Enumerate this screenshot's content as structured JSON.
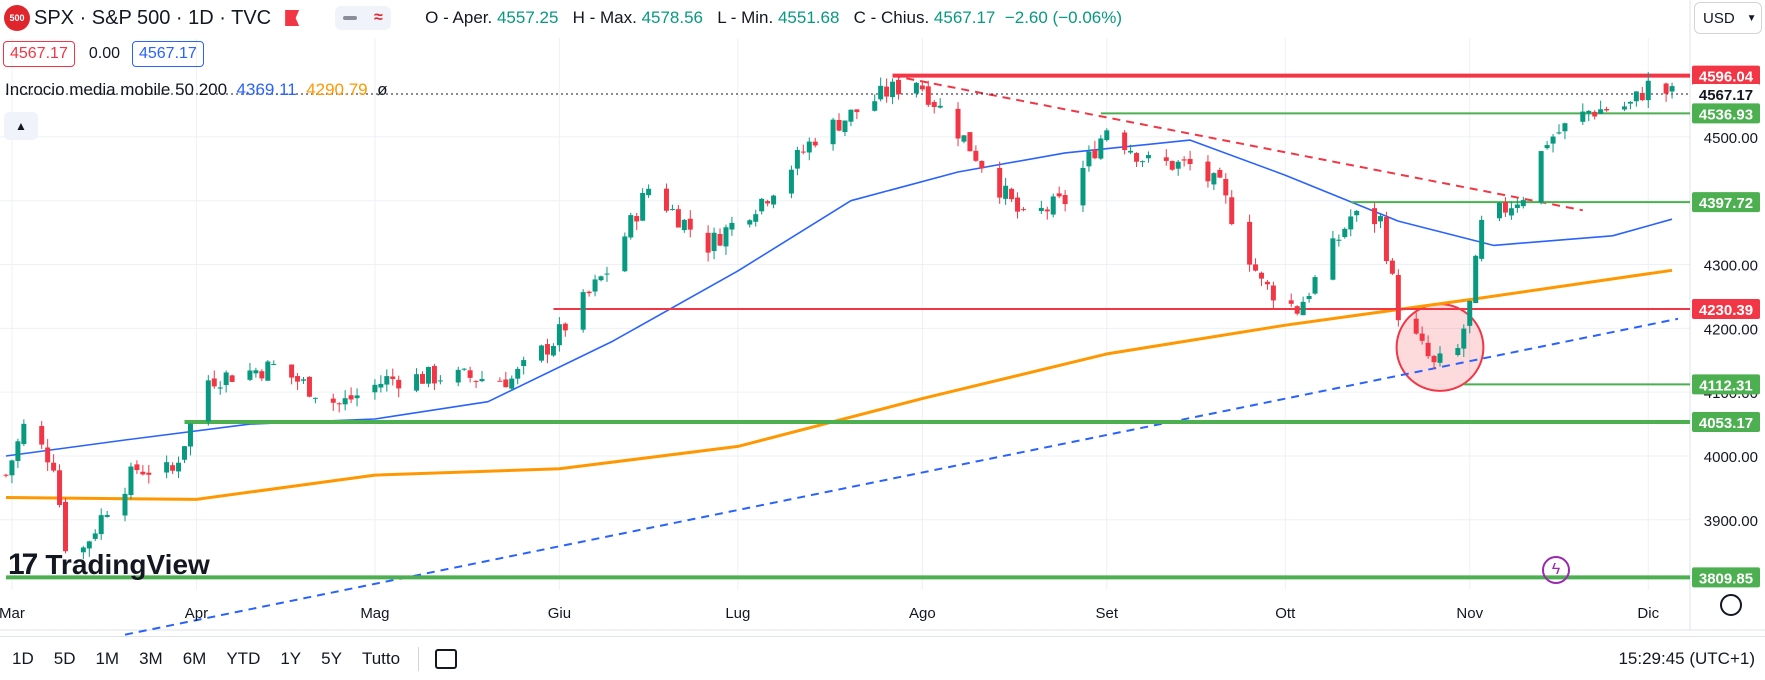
{
  "header": {
    "logo_text": "500",
    "symbol": "SPX · S&P 500 · 1D · TVC",
    "ohlc": {
      "o_label": "O - Aper.",
      "o": "4557.25",
      "h_label": "H - Max.",
      "h": "4578.56",
      "l_label": "L - Min.",
      "l": "4551.68",
      "c_label": "C - Chius.",
      "c": "4567.17",
      "change": "−2.60 (−0.06%)"
    },
    "currency": "USD"
  },
  "quote": {
    "bid": "4567.17",
    "spread": "0.00",
    "ask": "4567.17"
  },
  "indicator": {
    "name": "Incrocio media mobile 50 200",
    "ma50": "4369.11",
    "ma200": "4290.79",
    "extra": "ø"
  },
  "brand": "TradingView",
  "bottombar": {
    "ranges": [
      "1D",
      "5D",
      "1M",
      "3M",
      "6M",
      "YTD",
      "1Y",
      "5Y",
      "Tutto"
    ],
    "clock": "15:29:45 (UTC+1)"
  },
  "colors": {
    "up": "#089981",
    "down": "#f23645",
    "ma50": "#2962ff",
    "ma200": "#ff9800",
    "support": "#4caf50"
  },
  "chart_data": {
    "type": "candlestick",
    "x_range": [
      "2023-02-28",
      "2023-12-06"
    ],
    "ylim": [
      3790,
      4655
    ],
    "y_ticks": [
      3900,
      4000,
      4100,
      4200,
      4300,
      4400,
      4500
    ],
    "x_ticks": [
      {
        "date": "2023-03-01",
        "label": "Mar"
      },
      {
        "date": "2023-04-01",
        "label": "Apr"
      },
      {
        "date": "2023-05-01",
        "label": "Mag"
      },
      {
        "date": "2023-06-01",
        "label": "Giu"
      },
      {
        "date": "2023-07-01",
        "label": "Lug"
      },
      {
        "date": "2023-08-01",
        "label": "Ago"
      },
      {
        "date": "2023-09-01",
        "label": "Set"
      },
      {
        "date": "2023-10-01",
        "label": "Ott"
      },
      {
        "date": "2023-11-01",
        "label": "Nov"
      },
      {
        "date": "2023-12-01",
        "label": "Dic"
      }
    ],
    "price_path": [
      [
        "2023-02-28",
        3970
      ],
      [
        "2023-03-03",
        4045
      ],
      [
        "2023-03-08",
        3990
      ],
      [
        "2023-03-10",
        3862
      ],
      [
        "2023-03-13",
        3855
      ],
      [
        "2023-03-17",
        3920
      ],
      [
        "2023-03-22",
        3980
      ],
      [
        "2023-03-28",
        3975
      ],
      [
        "2023-04-03",
        4120
      ],
      [
        "2023-04-14",
        4140
      ],
      [
        "2023-04-25",
        4080
      ],
      [
        "2023-05-03",
        4120
      ],
      [
        "2023-05-12",
        4125
      ],
      [
        "2023-05-24",
        4120
      ],
      [
        "2023-05-31",
        4180
      ],
      [
        "2023-06-09",
        4290
      ],
      [
        "2023-06-16",
        4420
      ],
      [
        "2023-06-26",
        4330
      ],
      [
        "2023-07-06",
        4410
      ],
      [
        "2023-07-14",
        4500
      ],
      [
        "2023-07-26",
        4570
      ],
      [
        "2023-07-31",
        4590
      ],
      [
        "2023-08-07",
        4510
      ],
      [
        "2023-08-18",
        4370
      ],
      [
        "2023-08-25",
        4400
      ],
      [
        "2023-09-01",
        4515
      ],
      [
        "2023-09-08",
        4460
      ],
      [
        "2023-09-15",
        4455
      ],
      [
        "2023-09-20",
        4420
      ],
      [
        "2023-09-27",
        4270
      ],
      [
        "2023-10-03",
        4230
      ],
      [
        "2023-10-06",
        4275
      ],
      [
        "2023-10-12",
        4375
      ],
      [
        "2023-10-17",
        4370
      ],
      [
        "2023-10-20",
        4225
      ],
      [
        "2023-10-26",
        4140
      ],
      [
        "2023-10-30",
        4165
      ],
      [
        "2023-11-01",
        4235
      ],
      [
        "2023-11-03",
        4360
      ],
      [
        "2023-11-10",
        4410
      ],
      [
        "2023-11-14",
        4495
      ],
      [
        "2023-11-21",
        4540
      ],
      [
        "2023-11-28",
        4550
      ],
      [
        "2023-12-01",
        4580
      ],
      [
        "2023-12-05",
        4567
      ]
    ],
    "ma50": [
      [
        "2023-02-28",
        4000
      ],
      [
        "2023-03-20",
        4025
      ],
      [
        "2023-04-10",
        4050
      ],
      [
        "2023-05-01",
        4058
      ],
      [
        "2023-05-20",
        4085
      ],
      [
        "2023-06-10",
        4180
      ],
      [
        "2023-07-01",
        4290
      ],
      [
        "2023-07-20",
        4400
      ],
      [
        "2023-08-07",
        4445
      ],
      [
        "2023-08-25",
        4475
      ],
      [
        "2023-09-15",
        4495
      ],
      [
        "2023-10-01",
        4440
      ],
      [
        "2023-10-20",
        4368
      ],
      [
        "2023-11-05",
        4330
      ],
      [
        "2023-11-25",
        4345
      ],
      [
        "2023-12-05",
        4371
      ]
    ],
    "ma200": [
      [
        "2023-02-28",
        3935
      ],
      [
        "2023-04-01",
        3932
      ],
      [
        "2023-05-01",
        3970
      ],
      [
        "2023-06-01",
        3980
      ],
      [
        "2023-07-01",
        4015
      ],
      [
        "2023-08-01",
        4090
      ],
      [
        "2023-09-01",
        4160
      ],
      [
        "2023-10-01",
        4205
      ],
      [
        "2023-11-01",
        4245
      ],
      [
        "2023-12-05",
        4291
      ]
    ],
    "levels": [
      {
        "value": 4596.04,
        "label": "4596.04",
        "color": "#f23645",
        "from": "2023-07-27",
        "width": 4
      },
      {
        "value": 4567.17,
        "label": "4567.17",
        "color": "#131722",
        "from": "2023-02-28",
        "width": 1
      },
      {
        "value": 4536.93,
        "label": "4536.93",
        "color": "#4caf50",
        "from": "2023-08-31",
        "width": 2
      },
      {
        "value": 4397.72,
        "label": "4397.72",
        "color": "#4caf50",
        "from": "2023-10-12",
        "width": 2
      },
      {
        "value": 4230.39,
        "label": "4230.39",
        "color": "#f23645",
        "from": "2023-05-31",
        "width": 2
      },
      {
        "value": 4112.31,
        "label": "4112.31",
        "color": "#4caf50",
        "from": "2023-10-31",
        "width": 2
      },
      {
        "value": 4053.17,
        "label": "4053.17",
        "color": "#4caf50",
        "from": "2023-03-30",
        "width": 4
      },
      {
        "value": 3809.85,
        "label": "3809.85",
        "color": "#4caf50",
        "from": "2023-02-28",
        "width": 4
      }
    ],
    "trendlines": [
      {
        "from": [
          "2023-03-20",
          3720
        ],
        "to": [
          "2023-12-06",
          4215
        ],
        "color": "#2962ff",
        "dash": true
      },
      {
        "from": [
          "2023-07-27",
          4596
        ],
        "to": [
          "2023-11-20",
          4385
        ],
        "color": "#f23645",
        "dash": true
      }
    ],
    "highlight": {
      "center": [
        "2023-10-27",
        4170
      ],
      "radius_price": 68
    }
  }
}
